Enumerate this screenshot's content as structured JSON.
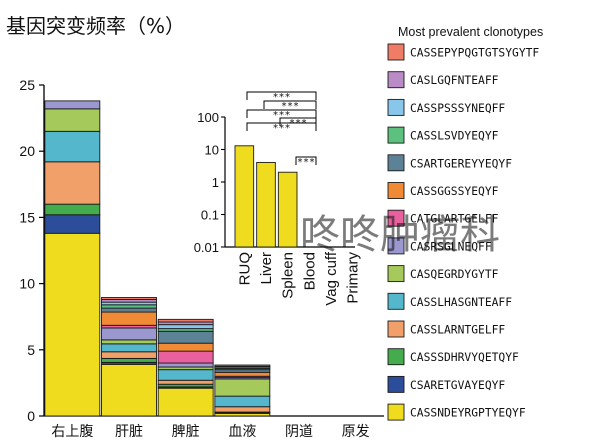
{
  "chart_data": [
    {
      "type": "bar",
      "stacked": true,
      "title": "基因突变频率（%）",
      "categories": [
        "右上腹",
        "肝脏",
        "脾脏",
        "血液",
        "阴道",
        "原发"
      ],
      "ylim": [
        0,
        25
      ],
      "yticks": [
        0,
        5,
        10,
        15,
        20,
        25
      ],
      "series": [
        {
          "name": "CASSNDEYRGPTYEQYF",
          "color": "#f0dc1e",
          "values": [
            13.8,
            3.9,
            2.1,
            0.2,
            0,
            0
          ]
        },
        {
          "name": "CSARETGVAYEQYF",
          "color": "#2b4d9a",
          "values": [
            1.4,
            0.15,
            0.1,
            0.05,
            0,
            0
          ]
        },
        {
          "name": "CASSSDHRVYQETQYF",
          "color": "#45ac4e",
          "values": [
            0.8,
            0.3,
            0.2,
            0.05,
            0,
            0
          ]
        },
        {
          "name": "CASSLARNTGELFF",
          "color": "#f2a06a",
          "values": [
            3.2,
            0.5,
            0.3,
            0.4,
            0,
            0
          ]
        },
        {
          "name": "CASSLHASGNTEAFF",
          "color": "#55b7cc",
          "values": [
            2.3,
            0.6,
            0.8,
            0.8,
            0,
            0
          ]
        },
        {
          "name": "CASQEGRDYGYTF",
          "color": "#a5c95a",
          "values": [
            1.7,
            0.3,
            0.2,
            1.3,
            0,
            0
          ]
        },
        {
          "name": "CASRSGLNEQFF",
          "color": "#9b98cf",
          "values": [
            0.6,
            0.9,
            0.3,
            0.1,
            0,
            0
          ]
        },
        {
          "name": "CATGLARTGELFF",
          "color": "#e9609e",
          "values": [
            0,
            0.2,
            0.9,
            0.1,
            0,
            0
          ]
        },
        {
          "name": "CASSGGSSYEQYF",
          "color": "#f08a34",
          "values": [
            0,
            1.0,
            0.6,
            0.3,
            0,
            0
          ]
        },
        {
          "name": "CSARTGEREYYEQYF",
          "color": "#5d8295",
          "values": [
            0,
            0.3,
            0.9,
            0.2,
            0,
            0
          ]
        },
        {
          "name": "CASSLSVDYEQYF",
          "color": "#5cc07e",
          "values": [
            0,
            0.25,
            0.2,
            0.1,
            0,
            0
          ]
        },
        {
          "name": "CASSPSSSYNEQFF",
          "color": "#88c6ea",
          "values": [
            0,
            0.2,
            0.3,
            0.1,
            0,
            0
          ]
        },
        {
          "name": "CASLGQFNTEAFF",
          "color": "#b98cc5",
          "values": [
            0,
            0.2,
            0.2,
            0.05,
            0,
            0
          ]
        },
        {
          "name": "CASSEPYPQGTGTSYGYTF",
          "color": "#ee7c66",
          "values": [
            0,
            0.15,
            0.2,
            0.1,
            0,
            0
          ]
        }
      ],
      "legend": {
        "title": "Most prevalent clonotypes",
        "position": "right"
      },
      "grid": false
    },
    {
      "type": "bar",
      "scale": "log",
      "categories": [
        "RUQ",
        "Liver",
        "Spleen",
        "Blood",
        "Vag cuff",
        "Primary"
      ],
      "values": [
        13,
        4,
        2,
        0.01,
        0,
        0
      ],
      "ylim": [
        0.01,
        100
      ],
      "yticks": [
        "100",
        "10",
        "1",
        "0.1",
        "0.01"
      ],
      "color": "#f0dc1e",
      "significance": [
        "***",
        "***",
        "***",
        "***",
        "***",
        "***"
      ]
    }
  ],
  "watermark": "咚咚肿瘤科"
}
